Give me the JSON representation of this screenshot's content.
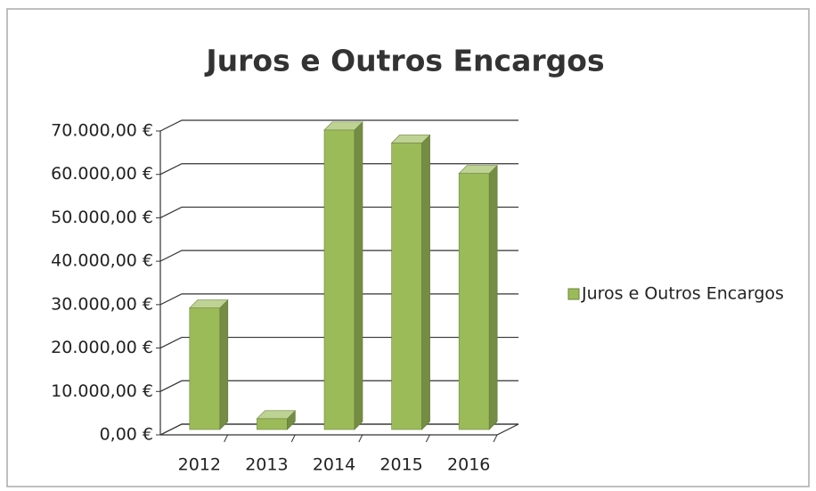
{
  "chart_data": {
    "type": "bar3d",
    "title": "Juros e Outros Encargos",
    "categories": [
      "2012",
      "2013",
      "2014",
      "2015",
      "2016"
    ],
    "series": [
      {
        "name": "Juros e Outros Encargos",
        "color": "#9bbb59",
        "values": [
          28000,
          2500,
          69000,
          66000,
          59000
        ]
      }
    ],
    "ylim": [
      0,
      70000
    ],
    "yticks": [
      {
        "value": 0,
        "label": "0,00 €"
      },
      {
        "value": 10000,
        "label": "10.000,00 €"
      },
      {
        "value": 20000,
        "label": "20.000,00 €"
      },
      {
        "value": 30000,
        "label": "30.000,00 €"
      },
      {
        "value": 40000,
        "label": "40.000,00 €"
      },
      {
        "value": 50000,
        "label": "50.000,00 €"
      },
      {
        "value": 60000,
        "label": "60.000,00 €"
      },
      {
        "value": 70000,
        "label": "70.000,00 €"
      }
    ],
    "grid": true,
    "legend": "right"
  }
}
